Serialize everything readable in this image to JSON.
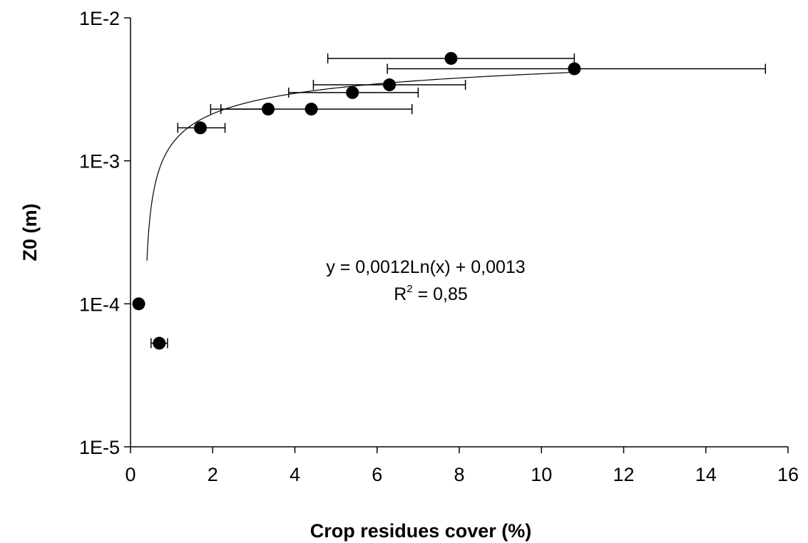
{
  "chart_data": {
    "type": "scatter",
    "xlabel": "Crop residues cover (%)",
    "ylabel": "Z0 (m)",
    "xlim": [
      0,
      16
    ],
    "ylim": [
      1e-05,
      0.01
    ],
    "yscale": "log",
    "grid": false,
    "xticks": [
      "0",
      "2",
      "4",
      "6",
      "8",
      "10",
      "12",
      "14",
      "16"
    ],
    "yticks": [
      "1E-5",
      "1E-4",
      "1E-3",
      "1E-2"
    ],
    "points": [
      {
        "x": 0.2,
        "y": 0.0001,
        "xerr": [
          0.2,
          0.2
        ]
      },
      {
        "x": 0.7,
        "y": 5.3e-05,
        "xerr": [
          0.5,
          0.9
        ]
      },
      {
        "x": 1.7,
        "y": 0.0017,
        "xerr": [
          1.15,
          2.3
        ]
      },
      {
        "x": 3.35,
        "y": 0.0023,
        "xerr": [
          2.2,
          3.35
        ]
      },
      {
        "x": 4.4,
        "y": 0.0023,
        "xerr": [
          1.95,
          6.85
        ]
      },
      {
        "x": 5.4,
        "y": 0.003,
        "xerr": [
          3.85,
          7.0
        ]
      },
      {
        "x": 6.3,
        "y": 0.0034,
        "xerr": [
          4.45,
          8.15
        ]
      },
      {
        "x": 7.8,
        "y": 0.0052,
        "xerr": [
          4.8,
          10.8
        ]
      },
      {
        "x": 10.8,
        "y": 0.0044,
        "xerr": [
          6.25,
          15.45
        ]
      }
    ],
    "trendline": {
      "type": "logarithmic",
      "a": 0.0012,
      "b": 0.0013,
      "x_range": [
        0.4,
        10.8
      ]
    },
    "annotations": {
      "equation": "y = 0,0012Ln(x) + 0,0013",
      "r2_prefix": "R",
      "r2_sup": "2",
      "r2_suffix": " = 0,85"
    }
  }
}
